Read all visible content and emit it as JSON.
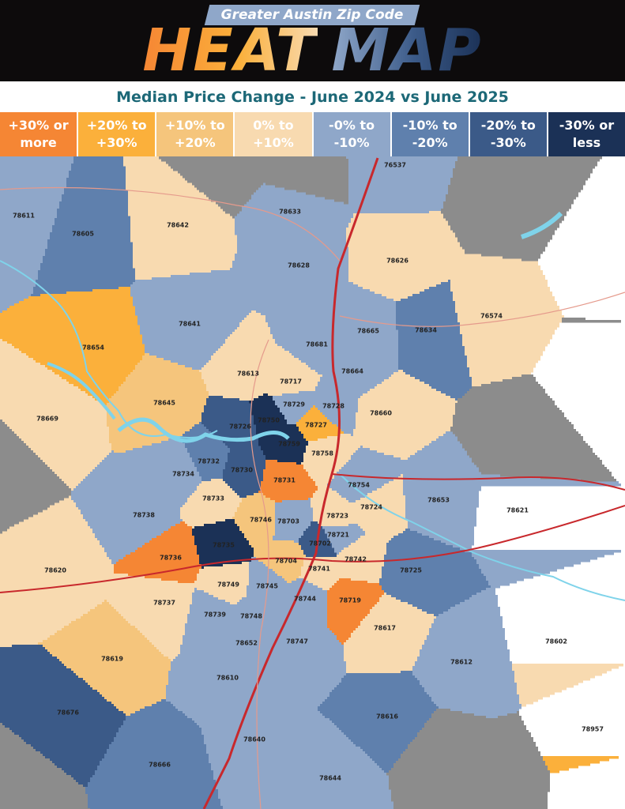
{
  "header": {
    "banner": "Greater Austin Zip Code",
    "title_part1": "HEAT",
    "title_part2": "MAP",
    "subtitle": "Median Price Change - June 2024 vs June 2025"
  },
  "legend": [
    {
      "label": "+30% or\nmore",
      "color": "#f58634"
    },
    {
      "label": "+20% to\n+30%",
      "color": "#fbb03b"
    },
    {
      "label": "+10% to\n+20%",
      "color": "#f5c57c"
    },
    {
      "label": "0% to\n+10%",
      "color": "#f8dab0"
    },
    {
      "label": "-0% to\n-10%",
      "color": "#8fa7c9"
    },
    {
      "label": "-10% to\n-20%",
      "color": "#5f80ad"
    },
    {
      "label": "-20% to\n-30%",
      "color": "#3b5a88"
    },
    {
      "label": "-30% or\nless",
      "color": "#1b3156"
    }
  ],
  "zips": [
    {
      "label": "76537",
      "color": "#8fa7c9"
    },
    {
      "label": "78611",
      "color": "#8fa7c9"
    },
    {
      "label": "78605",
      "color": "#5f80ad"
    },
    {
      "label": "78642",
      "color": "#f8dab0"
    },
    {
      "label": "78633",
      "color": "#8fa7c9"
    },
    {
      "label": "78628",
      "color": "#8fa7c9"
    },
    {
      "label": "78626",
      "color": "#f8dab0"
    },
    {
      "label": "76574",
      "color": "#f8dab0"
    },
    {
      "label": "78654",
      "color": "#fbb03b"
    },
    {
      "label": "78641",
      "color": "#8fa7c9"
    },
    {
      "label": "78665",
      "color": "#8fa7c9"
    },
    {
      "label": "78634",
      "color": "#5f80ad"
    },
    {
      "label": "78681",
      "color": "#8fa7c9"
    },
    {
      "label": "78664",
      "color": "#8fa7c9"
    },
    {
      "label": "78613",
      "color": "#f8dab0"
    },
    {
      "label": "78717",
      "color": "#f8dab0"
    },
    {
      "label": "78645",
      "color": "#f5c57c"
    },
    {
      "label": "78669",
      "color": "#f8dab0"
    },
    {
      "label": "78729",
      "color": "#8fa7c9"
    },
    {
      "label": "78728",
      "color": "#8fa7c9"
    },
    {
      "label": "78660",
      "color": "#f8dab0"
    },
    {
      "label": "78726",
      "color": "#3b5a88"
    },
    {
      "label": "78750",
      "color": "#1b3156"
    },
    {
      "label": "78727",
      "color": "#fbb03b"
    },
    {
      "label": "78759",
      "color": "#1b3156"
    },
    {
      "label": "78758",
      "color": "#f8dab0"
    },
    {
      "label": "78732",
      "color": "#5f80ad"
    },
    {
      "label": "78734",
      "color": "#8fa7c9"
    },
    {
      "label": "78730",
      "color": "#3b5a88"
    },
    {
      "label": "78731",
      "color": "#f58634"
    },
    {
      "label": "78754",
      "color": "#8fa7c9"
    },
    {
      "label": "78653",
      "color": "#8fa7c9"
    },
    {
      "label": "78621",
      "color": "#8fa7c9"
    },
    {
      "label": "78733",
      "color": "#f8dab0"
    },
    {
      "label": "78738",
      "color": "#8fa7c9"
    },
    {
      "label": "78746",
      "color": "#f5c57c"
    },
    {
      "label": "78703",
      "color": "#8fa7c9"
    },
    {
      "label": "78723",
      "color": "#f8dab0"
    },
    {
      "label": "78724",
      "color": "#f8dab0"
    },
    {
      "label": "78702",
      "color": "#3b5a88"
    },
    {
      "label": "78721",
      "color": "#8fa7c9"
    },
    {
      "label": "78735",
      "color": "#1b3156"
    },
    {
      "label": "78736",
      "color": "#f58634"
    },
    {
      "label": "78704",
      "color": "#f5c57c"
    },
    {
      "label": "78742",
      "color": "#f8dab0"
    },
    {
      "label": "78725",
      "color": "#5f80ad"
    },
    {
      "label": "78741",
      "color": "#f8dab0"
    },
    {
      "label": "78620",
      "color": "#f8dab0"
    },
    {
      "label": "78749",
      "color": "#f8dab0"
    },
    {
      "label": "78745",
      "color": "#8fa7c9"
    },
    {
      "label": "78744",
      "color": "#8fa7c9"
    },
    {
      "label": "78719",
      "color": "#f58634"
    },
    {
      "label": "78737",
      "color": "#f8dab0"
    },
    {
      "label": "78739",
      "color": "#8fa7c9"
    },
    {
      "label": "78748",
      "color": "#8fa7c9"
    },
    {
      "label": "78617",
      "color": "#f8dab0"
    },
    {
      "label": "78602",
      "color": "#f8dab0"
    },
    {
      "label": "78652",
      "color": "#8fa7c9"
    },
    {
      "label": "78747",
      "color": "#8fa7c9"
    },
    {
      "label": "78612",
      "color": "#8fa7c9"
    },
    {
      "label": "78619",
      "color": "#f5c57c"
    },
    {
      "label": "78610",
      "color": "#8fa7c9"
    },
    {
      "label": "78676",
      "color": "#3b5a88"
    },
    {
      "label": "78616",
      "color": "#5f80ad"
    },
    {
      "label": "78640",
      "color": "#8fa7c9"
    },
    {
      "label": "78957",
      "color": "#fbb03b"
    },
    {
      "label": "78666",
      "color": "#5f80ad"
    },
    {
      "label": "78644",
      "color": "#8fa7c9"
    }
  ]
}
